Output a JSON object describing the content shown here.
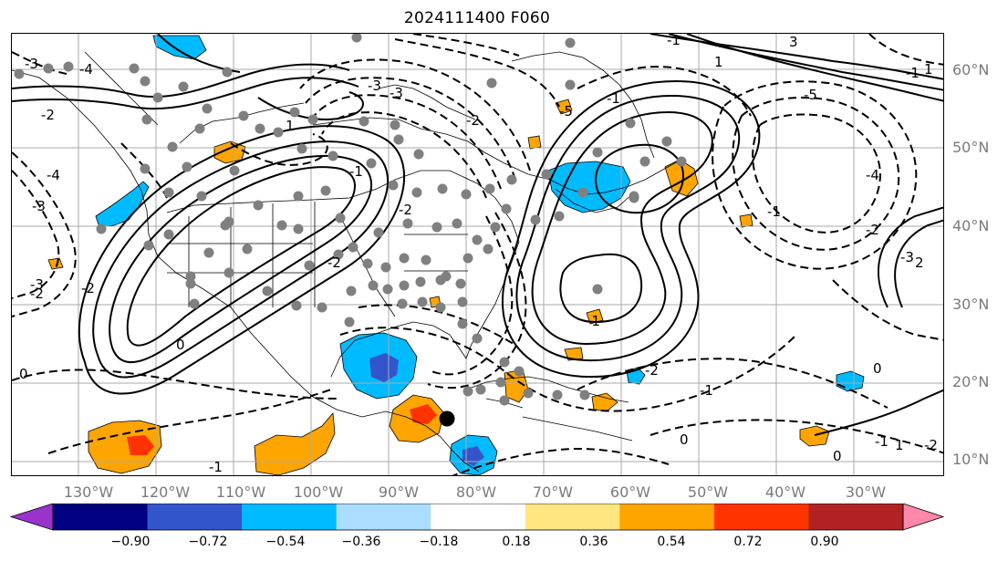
{
  "title": "2024111400 F060",
  "lat_labels": [
    "60°N",
    "50°N",
    "40°N",
    "30°N",
    "20°N",
    "10°N"
  ],
  "lon_labels": [
    "130°W",
    "120°W",
    "110°W",
    "100°W",
    "90°W",
    "80°W",
    "70°W",
    "60°W",
    "50°W",
    "40°W",
    "30°W"
  ],
  "colorbar": {
    "ticks": [
      "−0.90",
      "−0.72",
      "−0.54",
      "−0.36",
      "−0.18",
      "0.18",
      "0.36",
      "0.54",
      "0.72",
      "0.90"
    ],
    "colors": [
      "#9933cc",
      "#000080",
      "#3355cc",
      "#00bbff",
      "#aaddff",
      "#ffffff",
      "#ffe680",
      "#ffa500",
      "#ff3300",
      "#b22222",
      "#ff88aa"
    ]
  },
  "contour_labels": [
    "-3",
    "-4",
    "-3",
    "-2",
    "1",
    "-2",
    "-1",
    "-3",
    "-5",
    "-1",
    "-4",
    "-2",
    "-3",
    "1",
    "-1",
    "-2",
    "-3",
    "0",
    "-2",
    "0",
    "-1",
    "-2",
    "-1",
    "0",
    "1",
    "-1",
    "0",
    "-2",
    "-1",
    "-2",
    "-3",
    "-4",
    "-2",
    "-5",
    "-1",
    "0",
    "-1",
    "1",
    "2",
    "3"
  ],
  "shading": {
    "negative": "#00bbff",
    "positive": "#ffa500",
    "strong_positive": "#ff3300",
    "strong_negative": "#3355cc",
    "grid": "#aaaaaa",
    "dot": "#808080"
  }
}
